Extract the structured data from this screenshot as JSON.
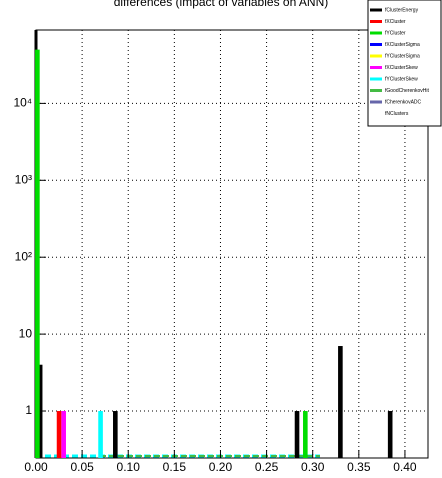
{
  "chart_data": {
    "type": "bar",
    "title": "differences (impact of variables on ANN)",
    "log_y": true,
    "grid": true,
    "bin_width": 0.005,
    "xlim": [
      0,
      0.425
    ],
    "ylim": [
      0.245,
      90000
    ],
    "xticks": [
      {
        "value": 0,
        "label": "0.00"
      },
      {
        "value": 0.05,
        "label": "0.05"
      },
      {
        "value": 0.1,
        "label": "0.10"
      },
      {
        "value": 0.15,
        "label": "0.15"
      },
      {
        "value": 0.2,
        "label": "0.20"
      },
      {
        "value": 0.25,
        "label": "0.25"
      },
      {
        "value": 0.3,
        "label": "0.30"
      },
      {
        "value": 0.35,
        "label": "0.35"
      },
      {
        "value": 0.4,
        "label": "0.40"
      }
    ],
    "yticks": [
      1,
      10,
      {
        "value": 100,
        "label": "10²"
      },
      {
        "value": 1000,
        "label": "10³"
      },
      {
        "value": 10000,
        "label": "10⁴"
      }
    ],
    "series": [
      {
        "name": "fClusterEnergy",
        "color": "#000000",
        "x": [
          0.0045,
          0.086,
          0.283,
          0.33,
          0.384
        ],
        "values": [
          4,
          1,
          1,
          7,
          1
        ]
      },
      {
        "name": "fXCluster",
        "color": "#ff0000",
        "x": [
          0.025
        ],
        "values": [
          1
        ]
      },
      {
        "name": "fYCluster",
        "color": "#00dd00",
        "x": [
          0.0015,
          0.292
        ],
        "values": [
          50000,
          1
        ]
      },
      {
        "name": "fXClusterSigma",
        "color": "#0000ff",
        "x": [],
        "values": []
      },
      {
        "name": "fYClusterSigma",
        "color": "#ffff00",
        "x": [],
        "values": []
      },
      {
        "name": "fXClusterSkew",
        "color": "#ff00ff",
        "x": [
          0.03
        ],
        "values": [
          1
        ]
      },
      {
        "name": "fYClusterSkew",
        "color": "#00ffff",
        "x": [
          0.07
        ],
        "values": [
          1
        ]
      },
      {
        "name": "fGoodCherenkovHit",
        "color": "#44bb44",
        "x": [],
        "values": []
      },
      {
        "name": "fCherenkovADC",
        "color": "#6666aa",
        "x": [],
        "values": []
      },
      {
        "name": "fNClusters",
        "color": "#ffffff",
        "x": [],
        "values": []
      }
    ]
  }
}
